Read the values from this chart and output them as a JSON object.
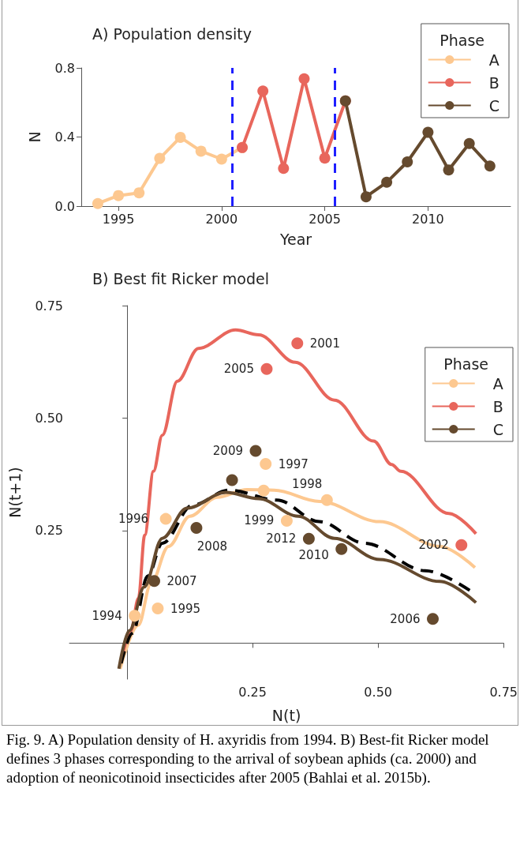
{
  "chart_data": [
    {
      "type": "line",
      "title": "A) Population density",
      "xlabel": "Year",
      "ylabel": "N",
      "legend_title": "Phase",
      "legend": "top right",
      "marker": "circle",
      "xlim": [
        1993.2,
        2014
      ],
      "xticks": [
        1995,
        2000,
        2005,
        2010
      ],
      "ylim": [
        0,
        0.8
      ],
      "yticks": [
        {
          "value": 0,
          "label": "0.0"
        },
        0.4,
        0.8
      ],
      "series": [
        {
          "name": "A",
          "color": "#fdc890",
          "x": [
            1994,
            1995,
            1996,
            1997,
            1998,
            1999,
            2000,
            2001
          ],
          "values": [
            0.015,
            0.061,
            0.077,
            0.276,
            0.398,
            0.318,
            0.272,
            0.339
          ]
        },
        {
          "name": "B",
          "color": "#e8665c",
          "x": [
            2001,
            2002,
            2003,
            2004,
            2005,
            2006
          ],
          "values": [
            0.339,
            0.666,
            0.218,
            0.737,
            0.278,
            0.609
          ]
        },
        {
          "name": "C",
          "color": "#654a2e",
          "x": [
            2006,
            2007,
            2008,
            2009,
            2010,
            2011,
            2012,
            2013
          ],
          "values": [
            0.609,
            0.054,
            0.138,
            0.256,
            0.427,
            0.209,
            0.362,
            0.232
          ]
        }
      ],
      "ref_lines": [
        {
          "axis": "x",
          "value": 2000.5,
          "color": "#1f1fff",
          "line_style": "dashed"
        },
        {
          "axis": "x",
          "value": 2005.5,
          "color": "#1f1fff",
          "line_style": "dashed"
        }
      ]
    },
    {
      "type": "line",
      "title": "B) Best fit Ricker model",
      "xlabel": "N(t)",
      "ylabel": "N(t+1)",
      "legend_title": "Phase",
      "legend": "right",
      "xlim": [
        -0.115,
        0.75
      ],
      "xticks": [
        0.25,
        {
          "value": 0.5,
          "label": "0.50"
        },
        0.75
      ],
      "ylim": [
        -0.08,
        0.75
      ],
      "yticks": [
        0.25,
        {
          "value": 0.5,
          "label": "0.50"
        },
        0.75
      ],
      "series": [
        {
          "name": "A",
          "color": "#fdc890",
          "marker": "none",
          "x": [
            -0.014,
            0.0225,
            0.047,
            0.0825,
            0.125,
            0.179,
            0.239,
            0.293,
            0.383,
            0.503,
            0.623,
            0.693
          ],
          "values": [
            -0.057,
            0.04,
            0.131,
            0.215,
            0.282,
            0.324,
            0.341,
            0.34,
            0.315,
            0.27,
            0.215,
            0.168
          ]
        },
        {
          "name": "B",
          "color": "#e8665c",
          "marker": "none",
          "x": [
            -0.01,
            0.0075,
            0.0225,
            0.035,
            0.0525,
            0.07,
            0.1,
            0.142,
            0.216,
            0.262,
            0.335,
            0.413,
            0.491,
            0.527,
            0.545,
            0.641,
            0.695
          ],
          "values": [
            -0.03,
            0.028,
            0.1,
            0.24,
            0.382,
            0.462,
            0.582,
            0.655,
            0.696,
            0.685,
            0.624,
            0.54,
            0.449,
            0.397,
            0.382,
            0.288,
            0.243
          ]
        },
        {
          "color": "#000000",
          "marker": "none",
          "line_style": "dashed",
          "x": [
            -0.012,
            0.0105,
            0.041,
            0.07,
            0.131,
            0.203,
            0.298,
            0.383,
            0.473,
            0.594,
            0.684
          ],
          "values": [
            -0.045,
            0.022,
            0.149,
            0.222,
            0.307,
            0.34,
            0.318,
            0.27,
            0.222,
            0.161,
            0.116
          ]
        },
        {
          "name": "C",
          "color": "#654a2e",
          "marker": "none",
          "x": [
            -0.0165,
            0.0045,
            0.034,
            0.07,
            0.119,
            0.197,
            0.262,
            0.341,
            0.413,
            0.503,
            0.623,
            0.695
          ],
          "values": [
            -0.057,
            0.028,
            0.125,
            0.233,
            0.3,
            0.335,
            0.321,
            0.282,
            0.233,
            0.186,
            0.137,
            0.09
          ]
        },
        {
          "type": "scatter",
          "color": "#fdc890",
          "marker": "circle",
          "x": [
            0.015,
            0.061,
            0.077,
            0.276,
            0.398,
            0.318,
            0.272
          ],
          "values": [
            0.061,
            0.077,
            0.276,
            0.398,
            0.318,
            0.272,
            0.339
          ]
        },
        {
          "type": "scatter",
          "color": "#e8665c",
          "marker": "circle",
          "x": [
            0.339,
            0.666,
            0.278
          ],
          "values": [
            0.666,
            0.218,
            0.609
          ]
        },
        {
          "type": "scatter",
          "color": "#654a2e",
          "marker": "circle",
          "x": [
            0.609,
            0.054,
            0.138,
            0.256,
            0.427,
            0.209,
            0.362
          ],
          "values": [
            0.054,
            0.138,
            0.256,
            0.427,
            0.209,
            0.362,
            0.232
          ]
        }
      ],
      "annotations": [
        {
          "text": "1994",
          "x": 0.015,
          "y": 0.061
        },
        {
          "text": "1995",
          "x": 0.061,
          "y": 0.077
        },
        {
          "text": "1996",
          "x": 0.077,
          "y": 0.276
        },
        {
          "text": "1997",
          "x": 0.276,
          "y": 0.398
        },
        {
          "text": "1998",
          "x": 0.398,
          "y": 0.318
        },
        {
          "text": "1999",
          "x": 0.318,
          "y": 0.272
        },
        {
          "text": "2001",
          "x": 0.339,
          "y": 0.666
        },
        {
          "text": "2002",
          "x": 0.666,
          "y": 0.218
        },
        {
          "text": "2005",
          "x": 0.278,
          "y": 0.609
        },
        {
          "text": "2006",
          "x": 0.609,
          "y": 0.054
        },
        {
          "text": "2007",
          "x": 0.054,
          "y": 0.138
        },
        {
          "text": "2008",
          "x": 0.138,
          "y": 0.256
        },
        {
          "text": "2009",
          "x": 0.256,
          "y": 0.427
        },
        {
          "text": "2010",
          "x": 0.427,
          "y": 0.209
        },
        {
          "text": "2012",
          "x": 0.362,
          "y": 0.232
        },
        "Fig. 9. A) Population density of H. axyridis from 1994. B) Best-fit Ricker model defines 3 phases corresponding to the arrival of soybean aphids (ca. 2000) and adoption of neonicotinoid insecticides after 2005 (Bahlai et al. 2015b)."
      ]
    }
  ]
}
